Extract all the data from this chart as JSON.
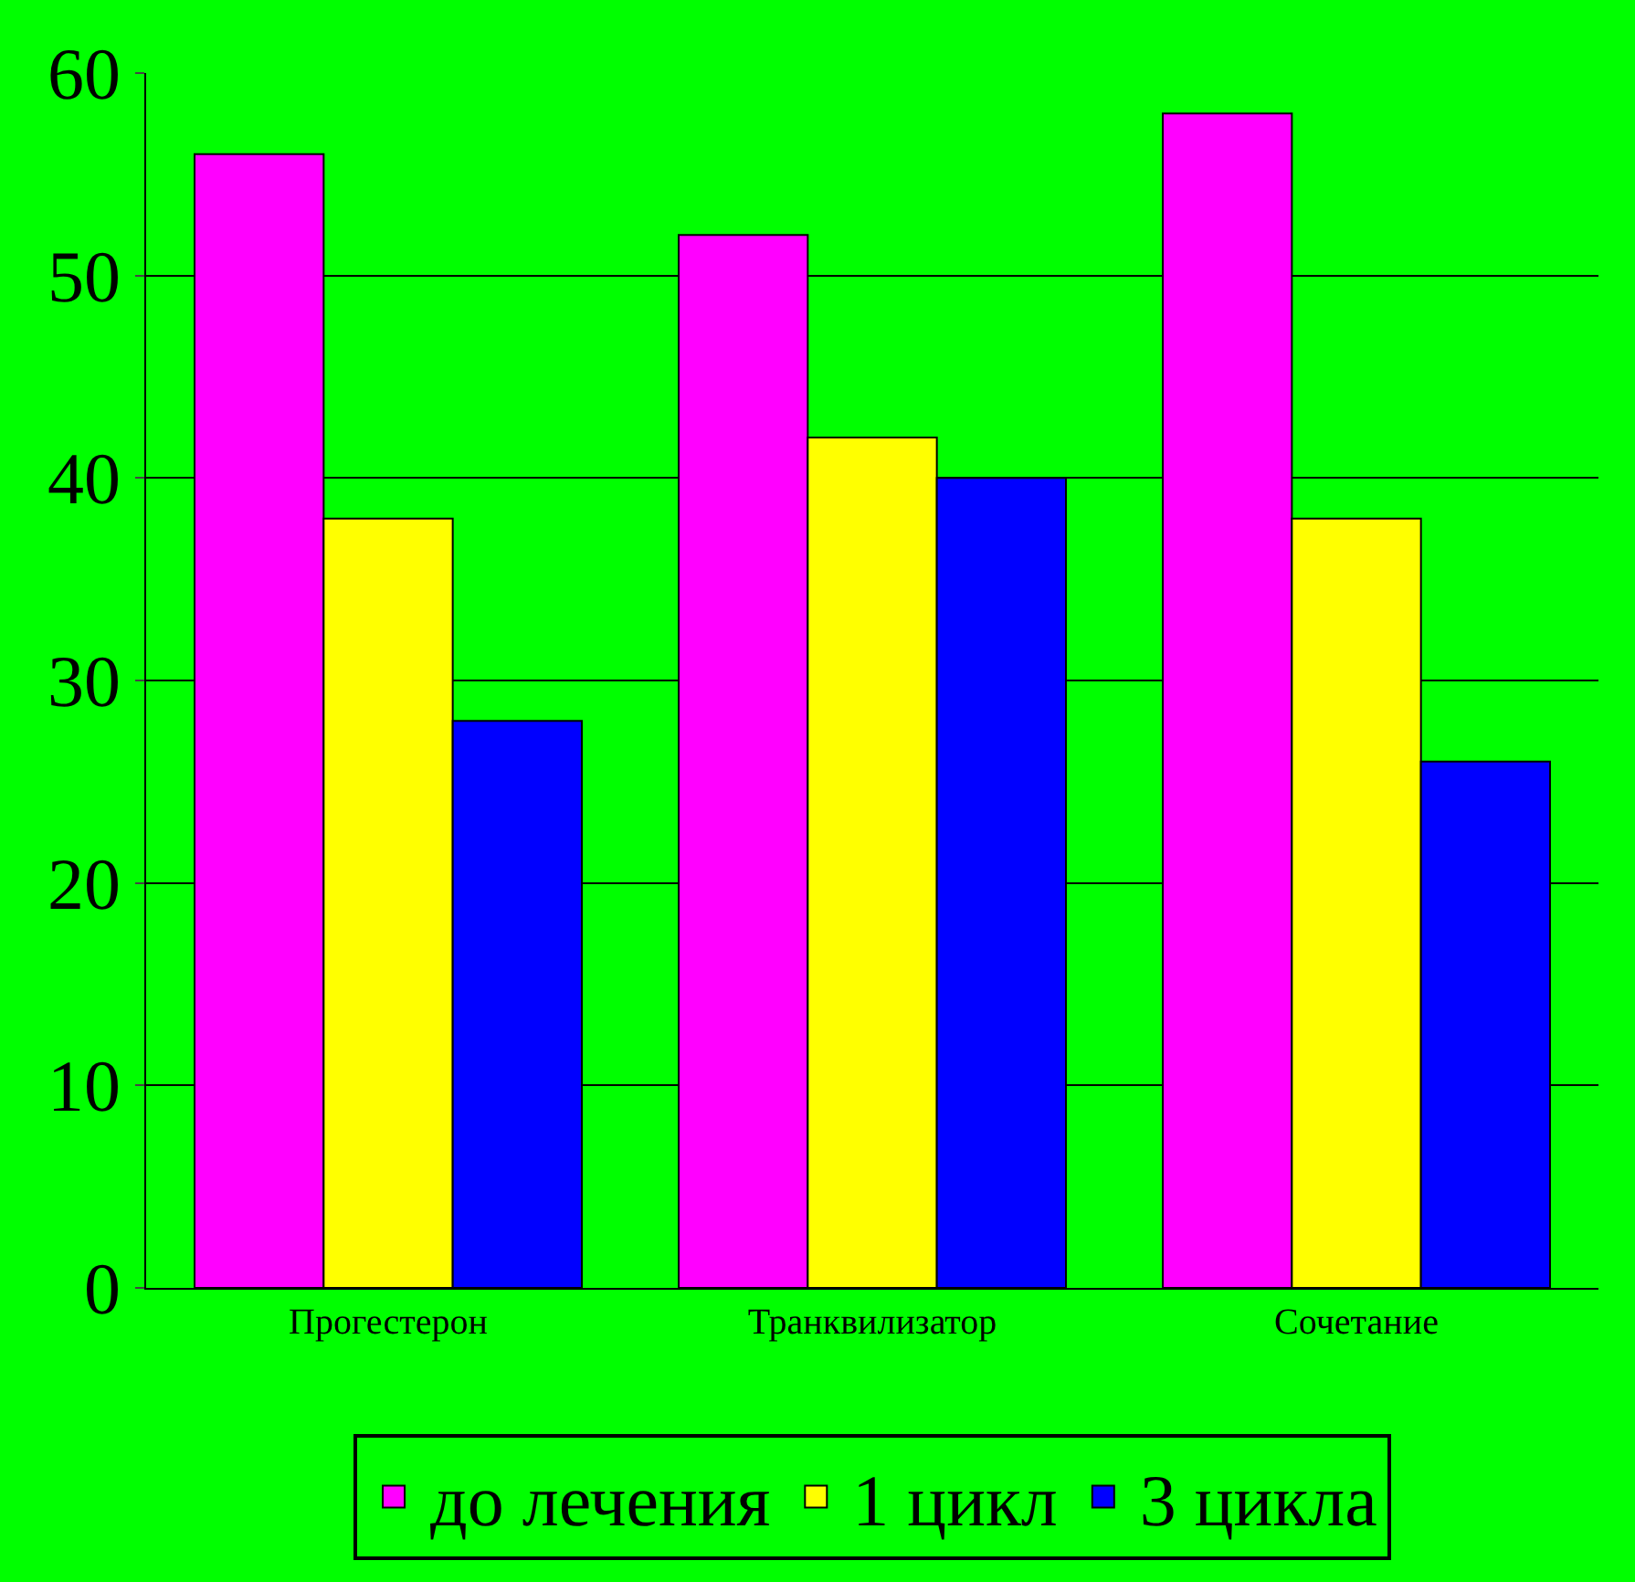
{
  "chart_data": {
    "type": "bar",
    "categories": [
      "Прогестерон",
      "Транквилизатор",
      "Сочетание"
    ],
    "series": [
      {
        "name": "до лечения",
        "color": "#ff00ff",
        "values": [
          56,
          52,
          58
        ]
      },
      {
        "name": "1 цикл",
        "color": "#ffff00",
        "values": [
          38,
          42,
          38
        ]
      },
      {
        "name": "3 цикла",
        "color": "#0000ff",
        "values": [
          28,
          40,
          26
        ]
      }
    ],
    "ylim": [
      0,
      60
    ],
    "yticks": [
      0,
      10,
      20,
      30,
      40,
      50,
      60
    ],
    "grid": "y",
    "legend": "bottom"
  }
}
